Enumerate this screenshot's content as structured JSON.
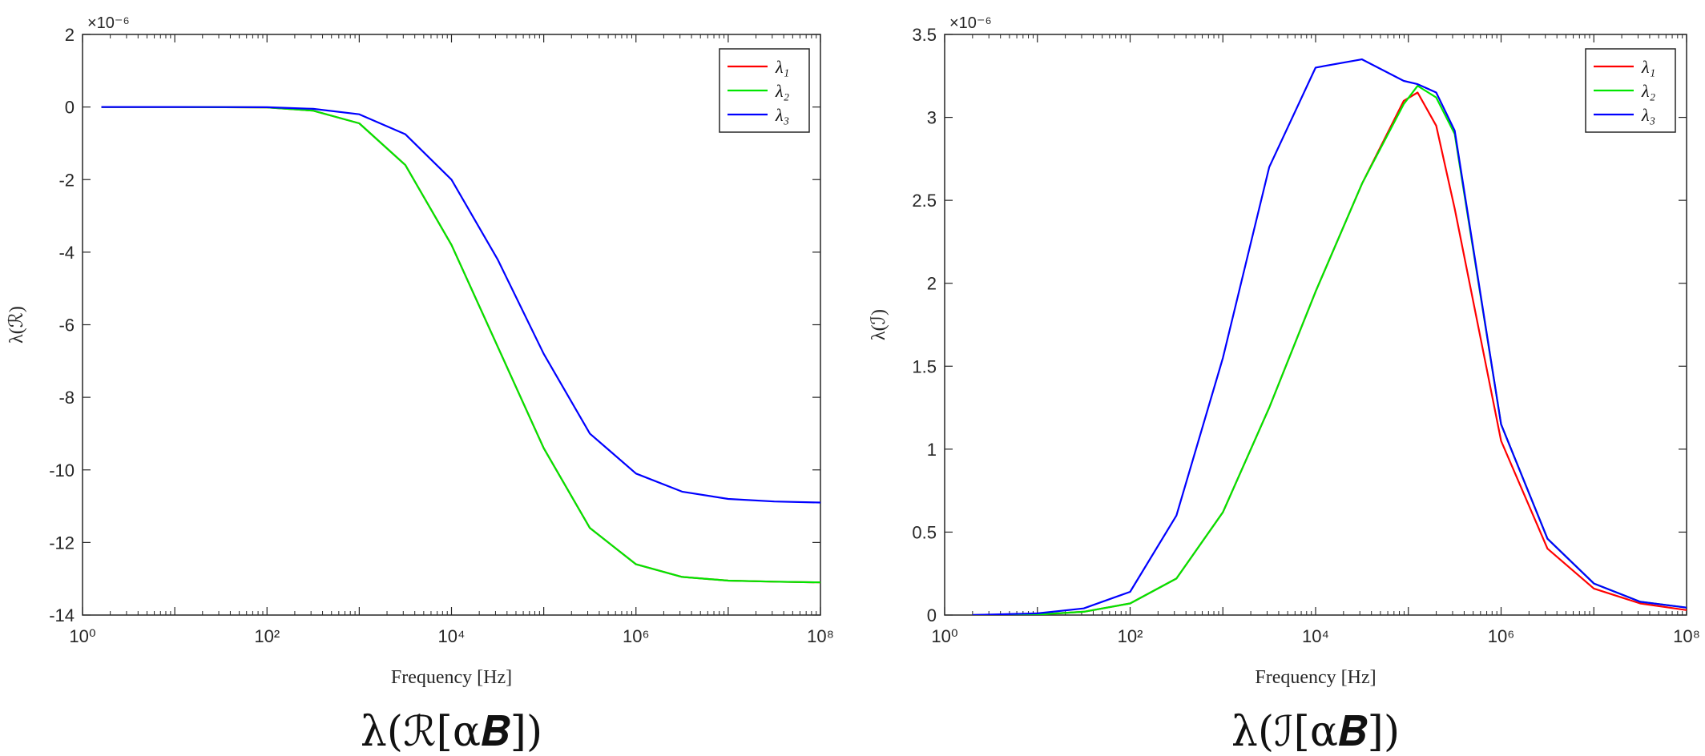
{
  "chart_data": [
    {
      "type": "line",
      "caption": "λ(ℛ[α𝑩])",
      "xlabel": "Frequency [Hz]",
      "ylabel": "λ(ℛ)",
      "x_scale": "log",
      "xlim": [
        1,
        100000000
      ],
      "ylim": [
        -14,
        2
      ],
      "y_exponent_label": "×10⁻⁶",
      "x_tick_labels": [
        "10⁰",
        "10²",
        "10⁴",
        "10⁶",
        "10⁸"
      ],
      "y_tick_labels": [
        "2",
        "0",
        "-2",
        "-4",
        "-6",
        "-8",
        "-10",
        "-12",
        "-14"
      ],
      "legend_position": "top-right",
      "grid": false,
      "x": [
        1.6,
        10,
        100,
        316,
        1000,
        3162,
        10000,
        31623,
        100000,
        316228,
        1000000,
        3162278,
        10000000,
        31622777,
        100000000
      ],
      "series": [
        {
          "name": "λ₁",
          "color": "#ff0000",
          "values": [
            0,
            0,
            -0.01,
            -0.1,
            -0.45,
            -1.6,
            -3.8,
            -6.6,
            -9.4,
            -11.6,
            -12.6,
            -12.95,
            -13.05,
            -13.08,
            -13.1
          ]
        },
        {
          "name": "λ₂",
          "color": "#00e600",
          "values": [
            0,
            0,
            -0.01,
            -0.1,
            -0.45,
            -1.6,
            -3.8,
            -6.6,
            -9.4,
            -11.6,
            -12.6,
            -12.95,
            -13.05,
            -13.08,
            -13.1
          ]
        },
        {
          "name": "λ₃",
          "color": "#0000ff",
          "values": [
            0,
            0,
            -0.005,
            -0.05,
            -0.2,
            -0.75,
            -2.0,
            -4.2,
            -6.8,
            -9.0,
            -10.1,
            -10.6,
            -10.8,
            -10.87,
            -10.9
          ]
        }
      ]
    },
    {
      "type": "line",
      "caption": "λ(ℐ[α𝑩])",
      "xlabel": "Frequency [Hz]",
      "ylabel": "λ(ℐ)",
      "x_scale": "log",
      "xlim": [
        1,
        100000000
      ],
      "ylim": [
        0,
        3.5
      ],
      "y_exponent_label": "×10⁻⁶",
      "x_tick_labels": [
        "10⁰",
        "10²",
        "10⁴",
        "10⁶",
        "10⁸"
      ],
      "y_tick_labels": [
        "0",
        "0.5",
        "1",
        "1.5",
        "2",
        "2.5",
        "3",
        "3.5"
      ],
      "legend_position": "top-right",
      "grid": false,
      "x": [
        2,
        10,
        31.6,
        100,
        316,
        1000,
        3162,
        10000,
        31623,
        89125,
        125893,
        199526,
        316228,
        1000000,
        3162278,
        10000000,
        31622777,
        100000000
      ],
      "series": [
        {
          "name": "λ₁",
          "color": "#ff0000",
          "values": [
            0.0,
            0.003,
            0.02,
            0.07,
            0.22,
            0.62,
            1.25,
            1.95,
            2.6,
            3.1,
            3.15,
            2.95,
            2.45,
            1.05,
            0.4,
            0.16,
            0.07,
            0.03
          ]
        },
        {
          "name": "λ₂",
          "color": "#00e600",
          "values": [
            0.0,
            0.003,
            0.02,
            0.07,
            0.22,
            0.62,
            1.25,
            1.95,
            2.6,
            3.08,
            3.19,
            3.12,
            2.9,
            1.15,
            0.46,
            0.19,
            0.08,
            0.045
          ]
        },
        {
          "name": "λ₃",
          "color": "#0000ff",
          "values": [
            0.0,
            0.01,
            0.04,
            0.14,
            0.6,
            1.55,
            2.7,
            3.3,
            3.35,
            3.22,
            3.2,
            3.15,
            2.92,
            1.15,
            0.46,
            0.19,
            0.08,
            0.045
          ]
        }
      ]
    }
  ]
}
